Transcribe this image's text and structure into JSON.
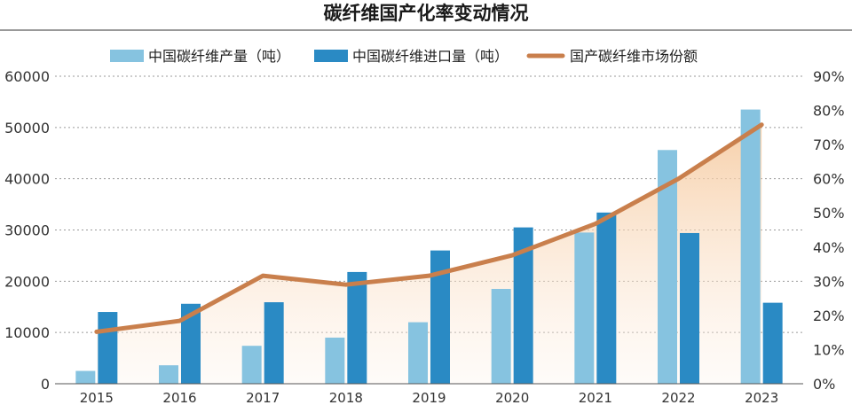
{
  "chart_data": {
    "type": "bar",
    "title": "碳纤维国产化率变动情况",
    "categories": [
      "2015",
      "2016",
      "2017",
      "2018",
      "2019",
      "2020",
      "2021",
      "2022",
      "2023"
    ],
    "series": [
      {
        "name": "中国碳纤维产量（吨）",
        "type": "bar",
        "axis": "left",
        "color": "#86c3e0",
        "values": [
          2500,
          3600,
          7400,
          9000,
          12000,
          18500,
          29500,
          45600,
          53500
        ]
      },
      {
        "name": "中国碳纤维进口量（吨）",
        "type": "bar",
        "axis": "left",
        "color": "#2a8ac4",
        "values": [
          14000,
          15600,
          15900,
          21800,
          26000,
          30500,
          33400,
          29400,
          15800
        ]
      },
      {
        "name": "国产碳纤维市场份额",
        "type": "line",
        "axis": "right",
        "color": "#c97f4c",
        "values": [
          15.2,
          18.4,
          31.6,
          29.0,
          31.6,
          37.6,
          46.8,
          60.0,
          75.8
        ]
      }
    ],
    "y_left": {
      "min": 0,
      "max": 60000,
      "ticks": [
        "0",
        "10000",
        "20000",
        "30000",
        "40000",
        "50000",
        "60000"
      ]
    },
    "y_right": {
      "min": 0,
      "max": 90,
      "ticks": [
        "0%",
        "10%",
        "20%",
        "30%",
        "40%",
        "50%",
        "60%",
        "70%",
        "80%",
        "90%"
      ]
    },
    "grid": true,
    "legend_position": "top"
  }
}
